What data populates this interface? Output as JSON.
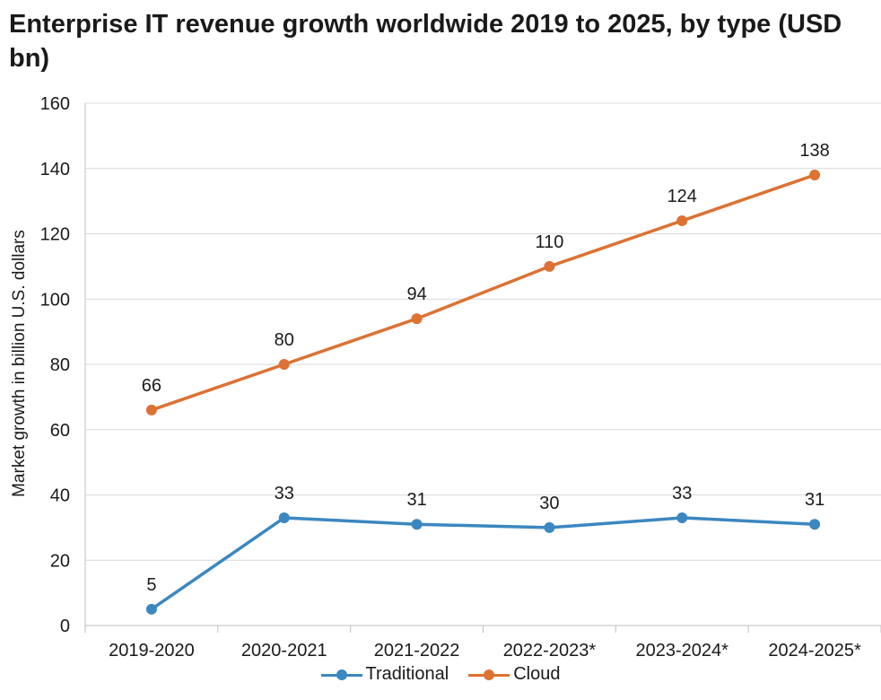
{
  "title": "Enterprise IT revenue growth worldwide 2019 to 2025, by type (USD bn)",
  "chart_data": {
    "type": "line",
    "title": "Enterprise IT revenue growth worldwide 2019 to 2025, by type (USD bn)",
    "xlabel": "",
    "ylabel": "Market growth in billion U.S. dollars",
    "ylim": [
      0,
      160
    ],
    "yticks": [
      "0",
      "20",
      "40",
      "60",
      "80",
      "100",
      "120",
      "140",
      "160"
    ],
    "categories": [
      "2019-2020",
      "2020-2021",
      "2021-2022",
      "2022-2023*",
      "2023-2024*",
      "2024-2025*"
    ],
    "grid": "horizontal",
    "legend_position": "bottom",
    "series": [
      {
        "name": "Traditional",
        "color": "#3b87c0",
        "values": [
          5,
          33,
          31,
          30,
          33,
          31
        ]
      },
      {
        "name": "Cloud",
        "color": "#dc7233",
        "values": [
          66,
          80,
          94,
          110,
          124,
          138
        ]
      }
    ]
  }
}
